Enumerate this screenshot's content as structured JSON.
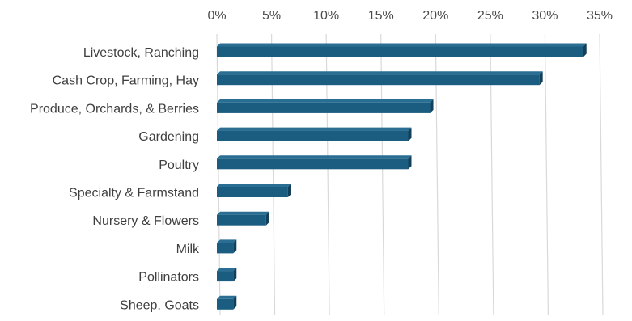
{
  "chart_data": {
    "type": "bar",
    "orientation": "horizontal",
    "style": "3d",
    "categories": [
      "Livestock, Ranching",
      "Cash Crop, Farming, Hay",
      "Produce, Orchards, & Berries",
      "Gardening",
      "Poultry",
      "Specialty & Farmstand",
      "Nursery & Flowers",
      "Milk",
      "Pollinators",
      "Sheep, Goats"
    ],
    "values": [
      33.5,
      29.5,
      19.5,
      17.5,
      17.5,
      6.5,
      4.5,
      1.5,
      1.5,
      1.5
    ],
    "value_unit": "%",
    "xlim": [
      0,
      35
    ],
    "x_ticks": [
      "0%",
      "5%",
      "10%",
      "15%",
      "20%",
      "25%",
      "30%",
      "35%"
    ],
    "x_axis_position": "top",
    "grid": true,
    "title": "",
    "xlabel": "",
    "ylabel": "",
    "legend": "none",
    "colors": {
      "bar_front": "#1b5d80",
      "bar_top": "#2a6f93",
      "bar_side": "#123f59",
      "grid": "#d9d9d9",
      "text": "#404040"
    }
  }
}
